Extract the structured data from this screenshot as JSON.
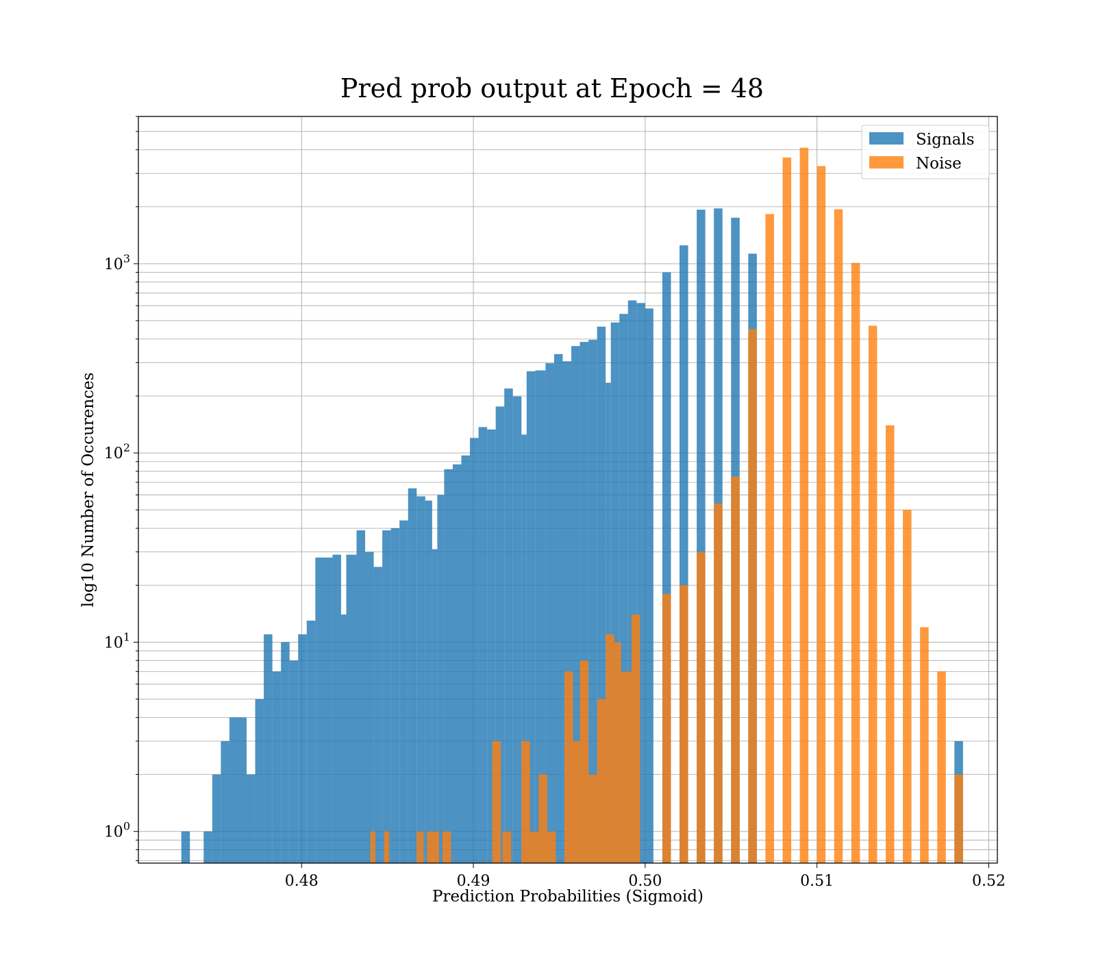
{
  "chart_data": {
    "type": "bar",
    "title": "Pred prob output at Epoch = 48",
    "xlabel": "Prediction Probabilities (Sigmoid)",
    "ylabel": "log10 Number of Occurences",
    "xlim": [
      0.4705,
      0.5205
    ],
    "ylim": [
      0.68,
      6000
    ],
    "yscale": "log",
    "grid": true,
    "legend_position": "top-right",
    "x_ticks": [
      0.48,
      0.49,
      0.5,
      0.51,
      0.52
    ],
    "x_tick_labels": [
      "0.48",
      "0.49",
      "0.50",
      "0.51",
      "0.52"
    ],
    "y_ticks": [
      {
        "base": "10",
        "exp": "0",
        "value": 1
      },
      {
        "base": "10",
        "exp": "1",
        "value": 10
      },
      {
        "base": "10",
        "exp": "2",
        "value": 100
      },
      {
        "base": "10",
        "exp": "3",
        "value": 1000
      }
    ],
    "colors": {
      "signals": "#1f77b4",
      "noise": "#ff7f0e"
    },
    "series": [
      {
        "name": "Signals",
        "color": "#1f77b4",
        "bars": [
          [
            0.473,
            0.4735,
            1
          ],
          [
            0.4743,
            0.4748,
            1
          ],
          [
            0.4748,
            0.4753,
            2
          ],
          [
            0.4753,
            0.4758,
            3
          ],
          [
            0.4758,
            0.4768,
            4
          ],
          [
            0.4768,
            0.4773,
            2
          ],
          [
            0.4773,
            0.4778,
            5
          ],
          [
            0.4778,
            0.4783,
            11
          ],
          [
            0.4783,
            0.4788,
            7
          ],
          [
            0.4788,
            0.4793,
            10
          ],
          [
            0.4793,
            0.4798,
            8
          ],
          [
            0.4798,
            0.4803,
            11
          ],
          [
            0.4803,
            0.4808,
            13
          ],
          [
            0.4808,
            0.4818,
            28
          ],
          [
            0.4818,
            0.4823,
            29
          ],
          [
            0.4823,
            0.4826,
            14
          ],
          [
            0.4826,
            0.4832,
            29
          ],
          [
            0.4832,
            0.4837,
            39
          ],
          [
            0.4837,
            0.4842,
            30
          ],
          [
            0.4842,
            0.4847,
            25
          ],
          [
            0.4847,
            0.4852,
            39
          ],
          [
            0.4852,
            0.4857,
            40
          ],
          [
            0.4857,
            0.4862,
            44
          ],
          [
            0.4862,
            0.4867,
            65
          ],
          [
            0.4867,
            0.4872,
            59
          ],
          [
            0.4872,
            0.4876,
            56
          ],
          [
            0.4876,
            0.4879,
            31
          ],
          [
            0.4879,
            0.4883,
            60
          ],
          [
            0.4883,
            0.4888,
            82
          ],
          [
            0.4888,
            0.4893,
            87
          ],
          [
            0.4893,
            0.4898,
            97
          ],
          [
            0.4898,
            0.4903,
            120
          ],
          [
            0.4903,
            0.4908,
            137
          ],
          [
            0.4908,
            0.4913,
            133
          ],
          [
            0.4913,
            0.4918,
            176
          ],
          [
            0.4918,
            0.4923,
            219
          ],
          [
            0.4923,
            0.4928,
            199
          ],
          [
            0.4928,
            0.4931,
            125
          ],
          [
            0.4931,
            0.4936,
            270
          ],
          [
            0.4936,
            0.4942,
            273
          ],
          [
            0.4942,
            0.4947,
            298
          ],
          [
            0.4947,
            0.4952,
            333
          ],
          [
            0.4952,
            0.4957,
            305
          ],
          [
            0.4957,
            0.4962,
            367
          ],
          [
            0.4962,
            0.4967,
            386
          ],
          [
            0.4967,
            0.4972,
            396
          ],
          [
            0.4972,
            0.4977,
            465
          ],
          [
            0.4977,
            0.498,
            235
          ],
          [
            0.498,
            0.4985,
            489
          ],
          [
            0.4985,
            0.499,
            543
          ],
          [
            0.499,
            0.4995,
            640
          ],
          [
            0.4995,
            0.5,
            620
          ],
          [
            0.5,
            0.5,
            580
          ],
          [
            0.501,
            0.5015,
            900
          ],
          [
            0.502,
            0.5025,
            1250
          ],
          [
            0.503,
            0.5035,
            1930
          ],
          [
            0.504,
            0.5045,
            1960
          ],
          [
            0.505,
            0.5055,
            1750
          ],
          [
            0.506,
            0.5065,
            1130
          ],
          [
            0.518,
            0.5185,
            3
          ]
        ]
      },
      {
        "name": "Noise",
        "color": "#ff7f0e",
        "bars": [
          [
            0.484,
            0.4843,
            1
          ],
          [
            0.4848,
            0.4851,
            1
          ],
          [
            0.4867,
            0.4871,
            1
          ],
          [
            0.4873,
            0.488,
            1
          ],
          [
            0.4882,
            0.4887,
            1
          ],
          [
            0.4911,
            0.4916,
            3
          ],
          [
            0.4917,
            0.4922,
            1
          ],
          [
            0.4928,
            0.4933,
            3
          ],
          [
            0.4933,
            0.4938,
            1
          ],
          [
            0.4938,
            0.4943,
            2
          ],
          [
            0.4943,
            0.4948,
            1
          ],
          [
            0.4953,
            0.4958,
            7
          ],
          [
            0.4958,
            0.4962,
            3
          ],
          [
            0.4962,
            0.4967,
            8
          ],
          [
            0.4967,
            0.4972,
            2
          ],
          [
            0.4972,
            0.4977,
            5
          ],
          [
            0.4977,
            0.4982,
            11
          ],
          [
            0.4982,
            0.4986,
            10
          ],
          [
            0.4986,
            0.4992,
            7
          ],
          [
            0.4992,
            0.4997,
            14
          ],
          [
            0.501,
            0.5015,
            18
          ],
          [
            0.502,
            0.5025,
            20
          ],
          [
            0.503,
            0.5035,
            30
          ],
          [
            0.504,
            0.5045,
            54
          ],
          [
            0.505,
            0.5055,
            75
          ],
          [
            0.506,
            0.5065,
            450
          ],
          [
            0.507,
            0.5075,
            1830
          ],
          [
            0.508,
            0.5085,
            3640
          ],
          [
            0.509,
            0.5095,
            4100
          ],
          [
            0.51,
            0.5105,
            3280
          ],
          [
            0.511,
            0.5115,
            1940
          ],
          [
            0.512,
            0.5125,
            1010
          ],
          [
            0.513,
            0.5135,
            470
          ],
          [
            0.514,
            0.5145,
            140
          ],
          [
            0.515,
            0.5155,
            50
          ],
          [
            0.516,
            0.5165,
            12
          ],
          [
            0.517,
            0.5175,
            7
          ],
          [
            0.518,
            0.5185,
            2
          ]
        ]
      }
    ]
  }
}
